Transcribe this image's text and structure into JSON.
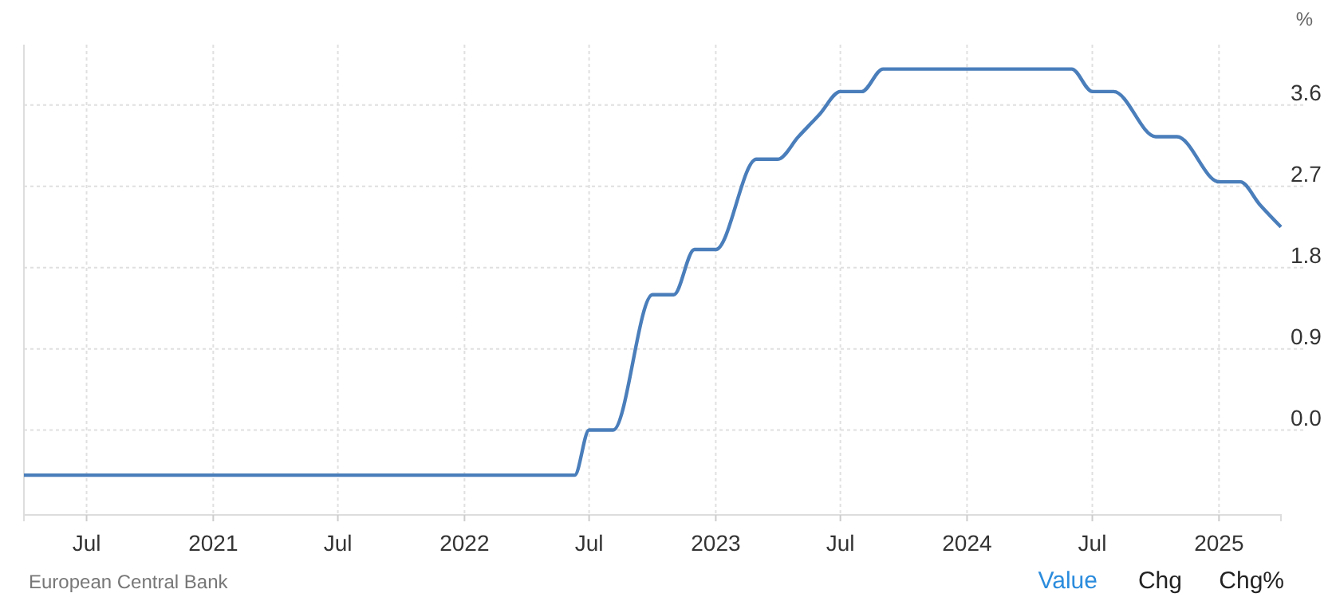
{
  "chart_data": {
    "type": "line",
    "ylabel": "%",
    "x": [
      "2020-04-01",
      "2022-06-10",
      "2022-07-01",
      "2022-08-05",
      "2022-10-01",
      "2022-11-01",
      "2022-12-01",
      "2023-01-01",
      "2023-03-01",
      "2023-04-01",
      "2023-05-01",
      "2023-06-01",
      "2023-07-01",
      "2023-08-01",
      "2023-09-01",
      "2024-06-01",
      "2024-07-01",
      "2024-08-01",
      "2024-10-01",
      "2024-11-01",
      "2025-01-01",
      "2025-02-01",
      "2025-03-01",
      "2025-04-01"
    ],
    "series": [
      {
        "color": "#4a7ebb",
        "values": [
          -0.5,
          -0.5,
          0,
          0,
          1.5,
          1.5,
          2,
          2,
          3,
          3,
          3.25,
          3.5,
          3.75,
          3.75,
          4,
          4,
          3.75,
          3.75,
          3.25,
          3.25,
          2.75,
          2.75,
          2.5,
          2.25
        ]
      }
    ],
    "xlim": [
      "2020-04-01",
      "2025-04-01"
    ],
    "xticks": [
      {
        "value": "2020-07-01",
        "label": "Jul"
      },
      {
        "value": "2021-01-01",
        "label": "2021"
      },
      {
        "value": "2021-07-01",
        "label": "Jul"
      },
      {
        "value": "2022-01-01",
        "label": "2022"
      },
      {
        "value": "2022-07-01",
        "label": "Jul"
      },
      {
        "value": "2023-01-01",
        "label": "2023"
      },
      {
        "value": "2023-07-01",
        "label": "Jul"
      },
      {
        "value": "2024-01-01",
        "label": "2024"
      },
      {
        "value": "2024-07-01",
        "label": "Jul"
      },
      {
        "value": "2025-01-01",
        "label": "2025"
      }
    ],
    "ylim": [
      -0.94,
      4.27
    ],
    "yticks": [
      {
        "value": 0,
        "label": "0.0"
      },
      {
        "value": 0.9,
        "label": "0.9"
      },
      {
        "value": 1.8,
        "label": "1.8"
      },
      {
        "value": 2.7,
        "label": "2.7"
      },
      {
        "value": 3.6,
        "label": "3.6"
      }
    ],
    "grid": true,
    "annotations": [
      "European Central Bank",
      "Value",
      "Chg",
      "Chg%"
    ]
  }
}
